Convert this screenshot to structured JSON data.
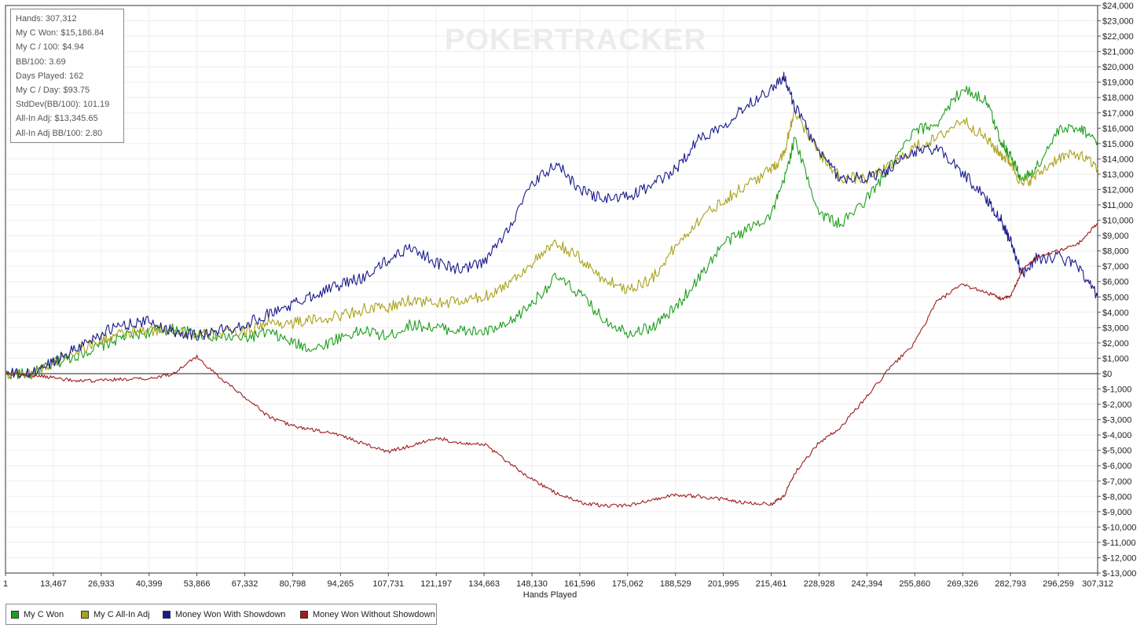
{
  "watermark": "POKERTRACKER",
  "stats": [
    "Hands: 307,312",
    "My C Won: $15,186.84",
    "My C / 100: $4.94",
    "BB/100: 3.69",
    "Days Played: 162",
    "My C / Day: $93.75",
    "StdDev(BB/100): 101.19",
    "All-In Adj: $13,345.65",
    "All-In Adj BB/100: 2.80"
  ],
  "legend": [
    {
      "label": "My C Won",
      "color": "#1e9e1e"
    },
    {
      "label": "My C All-In Adj",
      "color": "#aaa21a"
    },
    {
      "label": "Money Won With Showdown",
      "color": "#1a1a8c"
    },
    {
      "label": "Money Won Without Showdown",
      "color": "#a01c1c"
    }
  ],
  "chart_data": {
    "type": "line",
    "xlabel": "Hands Played",
    "ylabel": "",
    "xlim": [
      1,
      307312
    ],
    "ylim": [
      -13000,
      24000
    ],
    "x_ticks": [
      "1",
      "13,467",
      "26,933",
      "40,399",
      "53,866",
      "67,332",
      "80,798",
      "94,265",
      "107,731",
      "121,197",
      "134,663",
      "148,130",
      "161,596",
      "175,062",
      "188,529",
      "201,995",
      "215,461",
      "228,928",
      "242,394",
      "255,860",
      "269,326",
      "282,793",
      "296,259",
      "307,312"
    ],
    "y_ticks": [
      "$24,000",
      "$23,000",
      "$22,000",
      "$21,000",
      "$20,000",
      "$19,000",
      "$18,000",
      "$17,000",
      "$16,000",
      "$15,000",
      "$14,000",
      "$13,000",
      "$12,000",
      "$11,000",
      "$10,000",
      "$9,000",
      "$8,000",
      "$7,000",
      "$6,000",
      "$5,000",
      "$4,000",
      "$3,000",
      "$2,000",
      "$1,000",
      "$0",
      "$-1,000",
      "$-2,000",
      "$-3,000",
      "$-4,000",
      "$-5,000",
      "$-6,000",
      "$-7,000",
      "$-8,000",
      "$-9,000",
      "$-10,000",
      "$-11,000",
      "$-12,000",
      "$-13,000"
    ],
    "grid": true,
    "legend_position": "bottom-left",
    "x": [
      1,
      7000,
      13467,
      20000,
      26933,
      33000,
      40399,
      47000,
      53866,
      60000,
      67332,
      74000,
      80798,
      87000,
      94265,
      101000,
      107731,
      114000,
      121197,
      128000,
      134663,
      141000,
      148130,
      155000,
      161596,
      168000,
      175062,
      182000,
      188529,
      195000,
      201995,
      208000,
      215461,
      219000,
      222000,
      228928,
      235000,
      242394,
      249000,
      255860,
      262000,
      269326,
      276000,
      280000,
      282793,
      286000,
      290000,
      296259,
      302000,
      307312
    ],
    "series": [
      {
        "name": "My C Won",
        "values": [
          0,
          -50,
          600,
          1200,
          1800,
          2400,
          2700,
          2900,
          2600,
          2400,
          2300,
          2700,
          2000,
          1600,
          2400,
          2800,
          2400,
          3200,
          3000,
          2800,
          2700,
          3100,
          4600,
          6300,
          5200,
          3600,
          2700,
          3000,
          4300,
          6200,
          8500,
          9300,
          10400,
          12500,
          15300,
          10500,
          9700,
          11400,
          13500,
          15800,
          16300,
          18600,
          17800,
          15200,
          14200,
          12600,
          13400,
          15800,
          16100,
          15200
        ]
      },
      {
        "name": "My C All-In Adj",
        "values": [
          0,
          -30,
          700,
          1500,
          2200,
          2600,
          2800,
          2900,
          2500,
          2600,
          2800,
          3300,
          3300,
          3500,
          3800,
          4200,
          4300,
          4800,
          4600,
          4700,
          5000,
          5800,
          7200,
          8500,
          7500,
          6200,
          5500,
          6200,
          8300,
          10000,
          11300,
          12200,
          13300,
          14300,
          17200,
          14300,
          12800,
          12700,
          13500,
          14800,
          15300,
          16600,
          15300,
          14300,
          13800,
          12300,
          12900,
          14100,
          14300,
          13400
        ]
      },
      {
        "name": "Money Won With Showdown",
        "values": [
          0,
          -30,
          800,
          1700,
          2600,
          3200,
          3400,
          2800,
          2500,
          2800,
          3200,
          3900,
          4500,
          5200,
          5800,
          6300,
          7400,
          8300,
          7200,
          6800,
          7200,
          9300,
          12300,
          13700,
          12000,
          11400,
          11500,
          12300,
          13300,
          15300,
          16200,
          17400,
          18600,
          19300,
          17500,
          14400,
          12700,
          12800,
          13300,
          14500,
          14700,
          13100,
          11400,
          10100,
          8600,
          6500,
          7500,
          7600,
          7000,
          5000
        ]
      },
      {
        "name": "Money Won Without Showdown",
        "values": [
          0,
          -100,
          -250,
          -500,
          -450,
          -350,
          -350,
          0,
          1100,
          -200,
          -1500,
          -2800,
          -3400,
          -3700,
          -4000,
          -4600,
          -5100,
          -4700,
          -4200,
          -4500,
          -4600,
          -5700,
          -6900,
          -7800,
          -8400,
          -8600,
          -8600,
          -8200,
          -7900,
          -8000,
          -8200,
          -8400,
          -8500,
          -8000,
          -6500,
          -4500,
          -3500,
          -1500,
          400,
          2000,
          4700,
          5800,
          5300,
          4900,
          5000,
          6700,
          7600,
          8000,
          8500,
          9800
        ]
      }
    ]
  }
}
